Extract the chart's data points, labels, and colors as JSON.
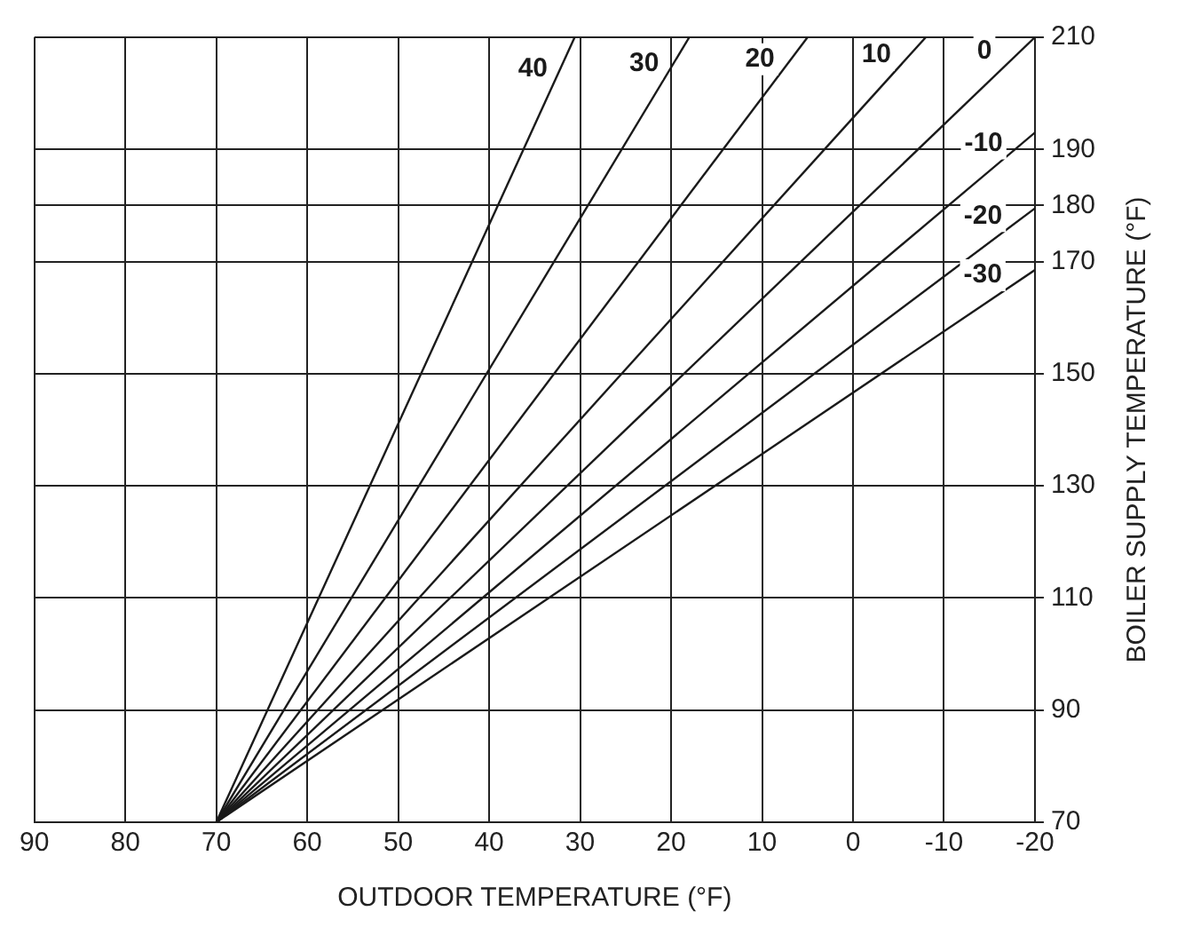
{
  "chart_data": {
    "type": "line",
    "xlabel": "OUTDOOR TEMPERATURE (°F)",
    "ylabel": "BOILER SUPPLY TEMPERATURE (°F)",
    "xlim": [
      90,
      -20
    ],
    "xticks": [
      90,
      80,
      70,
      60,
      50,
      40,
      30,
      20,
      10,
      0,
      -10,
      -20
    ],
    "ylim": [
      70,
      210
    ],
    "yticks": [
      70,
      90,
      110,
      130,
      150,
      170,
      180,
      190,
      210
    ],
    "grid": true,
    "legend": false,
    "marker": "none",
    "line_style": "solid",
    "series": [
      {
        "name": "40",
        "color": "#1a1a1a",
        "x": [
          70,
          30.6
        ],
        "values": [
          70,
          210
        ]
      },
      {
        "name": "30",
        "color": "#1a1a1a",
        "x": [
          70,
          18
        ],
        "values": [
          70,
          210
        ]
      },
      {
        "name": "20",
        "color": "#1a1a1a",
        "x": [
          70,
          5
        ],
        "values": [
          70,
          210
        ]
      },
      {
        "name": "10",
        "color": "#1a1a1a",
        "x": [
          70,
          -8
        ],
        "values": [
          70,
          210
        ]
      },
      {
        "name": "0",
        "color": "#1a1a1a",
        "x": [
          70,
          -20
        ],
        "values": [
          70,
          210
        ]
      },
      {
        "name": "-10",
        "color": "#1a1a1a",
        "x": [
          70,
          -20
        ],
        "values": [
          70,
          193
        ]
      },
      {
        "name": "-20",
        "color": "#1a1a1a",
        "x": [
          70,
          -20
        ],
        "values": [
          70,
          179.5
        ]
      },
      {
        "name": "-30",
        "color": "#1a1a1a",
        "x": [
          70,
          -20
        ],
        "values": [
          70,
          168.5
        ]
      }
    ]
  }
}
